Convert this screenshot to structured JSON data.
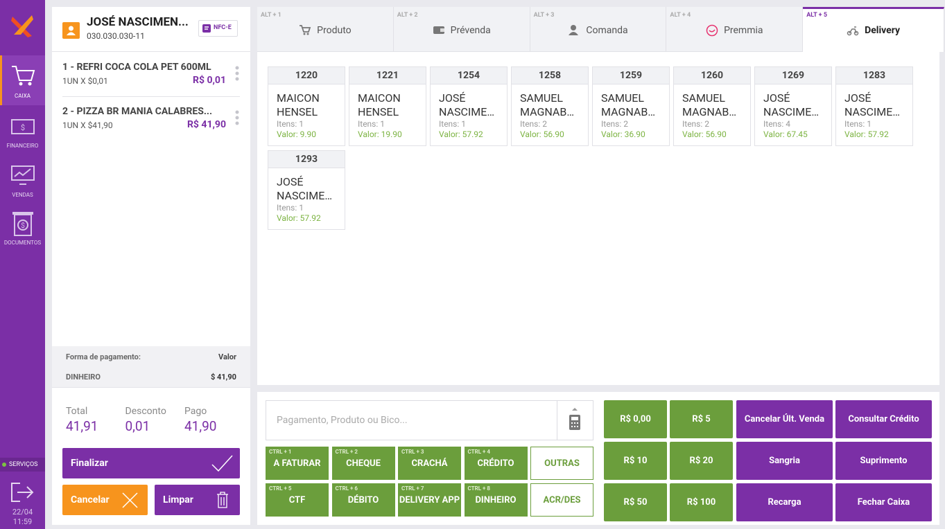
{
  "sidebar": {
    "items": [
      {
        "label": "CAIXA"
      },
      {
        "label": "FINANCEIRO"
      },
      {
        "label": "VENDAS"
      },
      {
        "label": "DOCUMENTOS"
      }
    ],
    "services": "SERVIÇOS",
    "date": "22/04",
    "time": "11:59"
  },
  "customer": {
    "name": "JOSÉ NASCIMEN...",
    "document": "030.030.030-11",
    "badge": "NFC-E"
  },
  "cart": [
    {
      "title": "1 - REFRI COCA COLA PET 600ML",
      "qty": "1UN X $0,01",
      "price": "R$ 0,01"
    },
    {
      "title": "2 - PIZZA BR MANIA CALABRES...",
      "qty": "1UN X $41,90",
      "price": "R$ 41,90"
    }
  ],
  "payments": {
    "header": [
      "Forma de pagamento:",
      "Valor"
    ],
    "rows": [
      [
        "DINHEIRO",
        "$ 41,90"
      ]
    ]
  },
  "totals": [
    {
      "label": "Total",
      "value": "41,91"
    },
    {
      "label": "Desconto",
      "value": "0,01"
    },
    {
      "label": "Pago",
      "value": "41,90"
    }
  ],
  "actions": {
    "finalize": "Finalizar",
    "cancel": "Cancelar",
    "clear": "Limpar"
  },
  "tabs": [
    {
      "shortcut": "ALT + 1",
      "label": "Produto"
    },
    {
      "shortcut": "ALT + 2",
      "label": "Prévenda"
    },
    {
      "shortcut": "ALT + 3",
      "label": "Comanda"
    },
    {
      "shortcut": "ALT + 4",
      "label": "Premmia"
    },
    {
      "shortcut": "ALT + 5",
      "label": "Delivery"
    }
  ],
  "orders": [
    {
      "id": "1220",
      "name": "MAICON HENSEL",
      "items": "Itens: 1",
      "value": "Valor: 9.90"
    },
    {
      "id": "1221",
      "name": "MAICON HENSEL",
      "items": "Itens: 1",
      "value": "Valor: 19.90"
    },
    {
      "id": "1254",
      "name": "JOSÉ NASCIME…",
      "items": "Itens: 1",
      "value": "Valor: 57.92"
    },
    {
      "id": "1258",
      "name": "SAMUEL MAGNAB…",
      "items": "Itens: 2",
      "value": "Valor: 56.90"
    },
    {
      "id": "1259",
      "name": "SAMUEL MAGNAB…",
      "items": "Itens: 2",
      "value": "Valor: 36.90"
    },
    {
      "id": "1260",
      "name": "SAMUEL MAGNAB…",
      "items": "Itens: 2",
      "value": "Valor: 56.90"
    },
    {
      "id": "1269",
      "name": "JOSÉ NASCIME…",
      "items": "Itens: 4",
      "value": "Valor: 67.45"
    },
    {
      "id": "1283",
      "name": "JOSÉ NASCIME…",
      "items": "Itens: 1",
      "value": "Valor: 57.92"
    },
    {
      "id": "1293",
      "name": "JOSÉ NASCIME…",
      "items": "Itens: 1",
      "value": "Valor: 57.92"
    }
  ],
  "search": {
    "placeholder": "Pagamento, Produto ou Bico..."
  },
  "payment_methods": [
    {
      "shortcut": "CTRL + 1",
      "label": "A FATURAR"
    },
    {
      "shortcut": "CTRL + 2",
      "label": "CHEQUE"
    },
    {
      "shortcut": "CTRL + 3",
      "label": "CRACHÁ"
    },
    {
      "shortcut": "CTRL + 4",
      "label": "CRÉDITO"
    },
    {
      "shortcut": "CTRL + 5",
      "label": "CTF"
    },
    {
      "shortcut": "CTRL + 6",
      "label": "DÉBITO"
    },
    {
      "shortcut": "CTRL + 7",
      "label": "DELIVERY APP"
    },
    {
      "shortcut": "CTRL + 8",
      "label": "DINHEIRO"
    }
  ],
  "extra_methods": [
    "OUTRAS",
    "ACR/DES"
  ],
  "quick_buttons": [
    [
      "R$ 0,00",
      "R$ 5",
      "Cancelar Últ. Venda",
      "Consultar Crédito"
    ],
    [
      "R$ 10",
      "R$ 20",
      "Sangria",
      "Suprimento"
    ],
    [
      "R$ 50",
      "R$ 100",
      "Recarga",
      "Fechar Caixa"
    ]
  ]
}
